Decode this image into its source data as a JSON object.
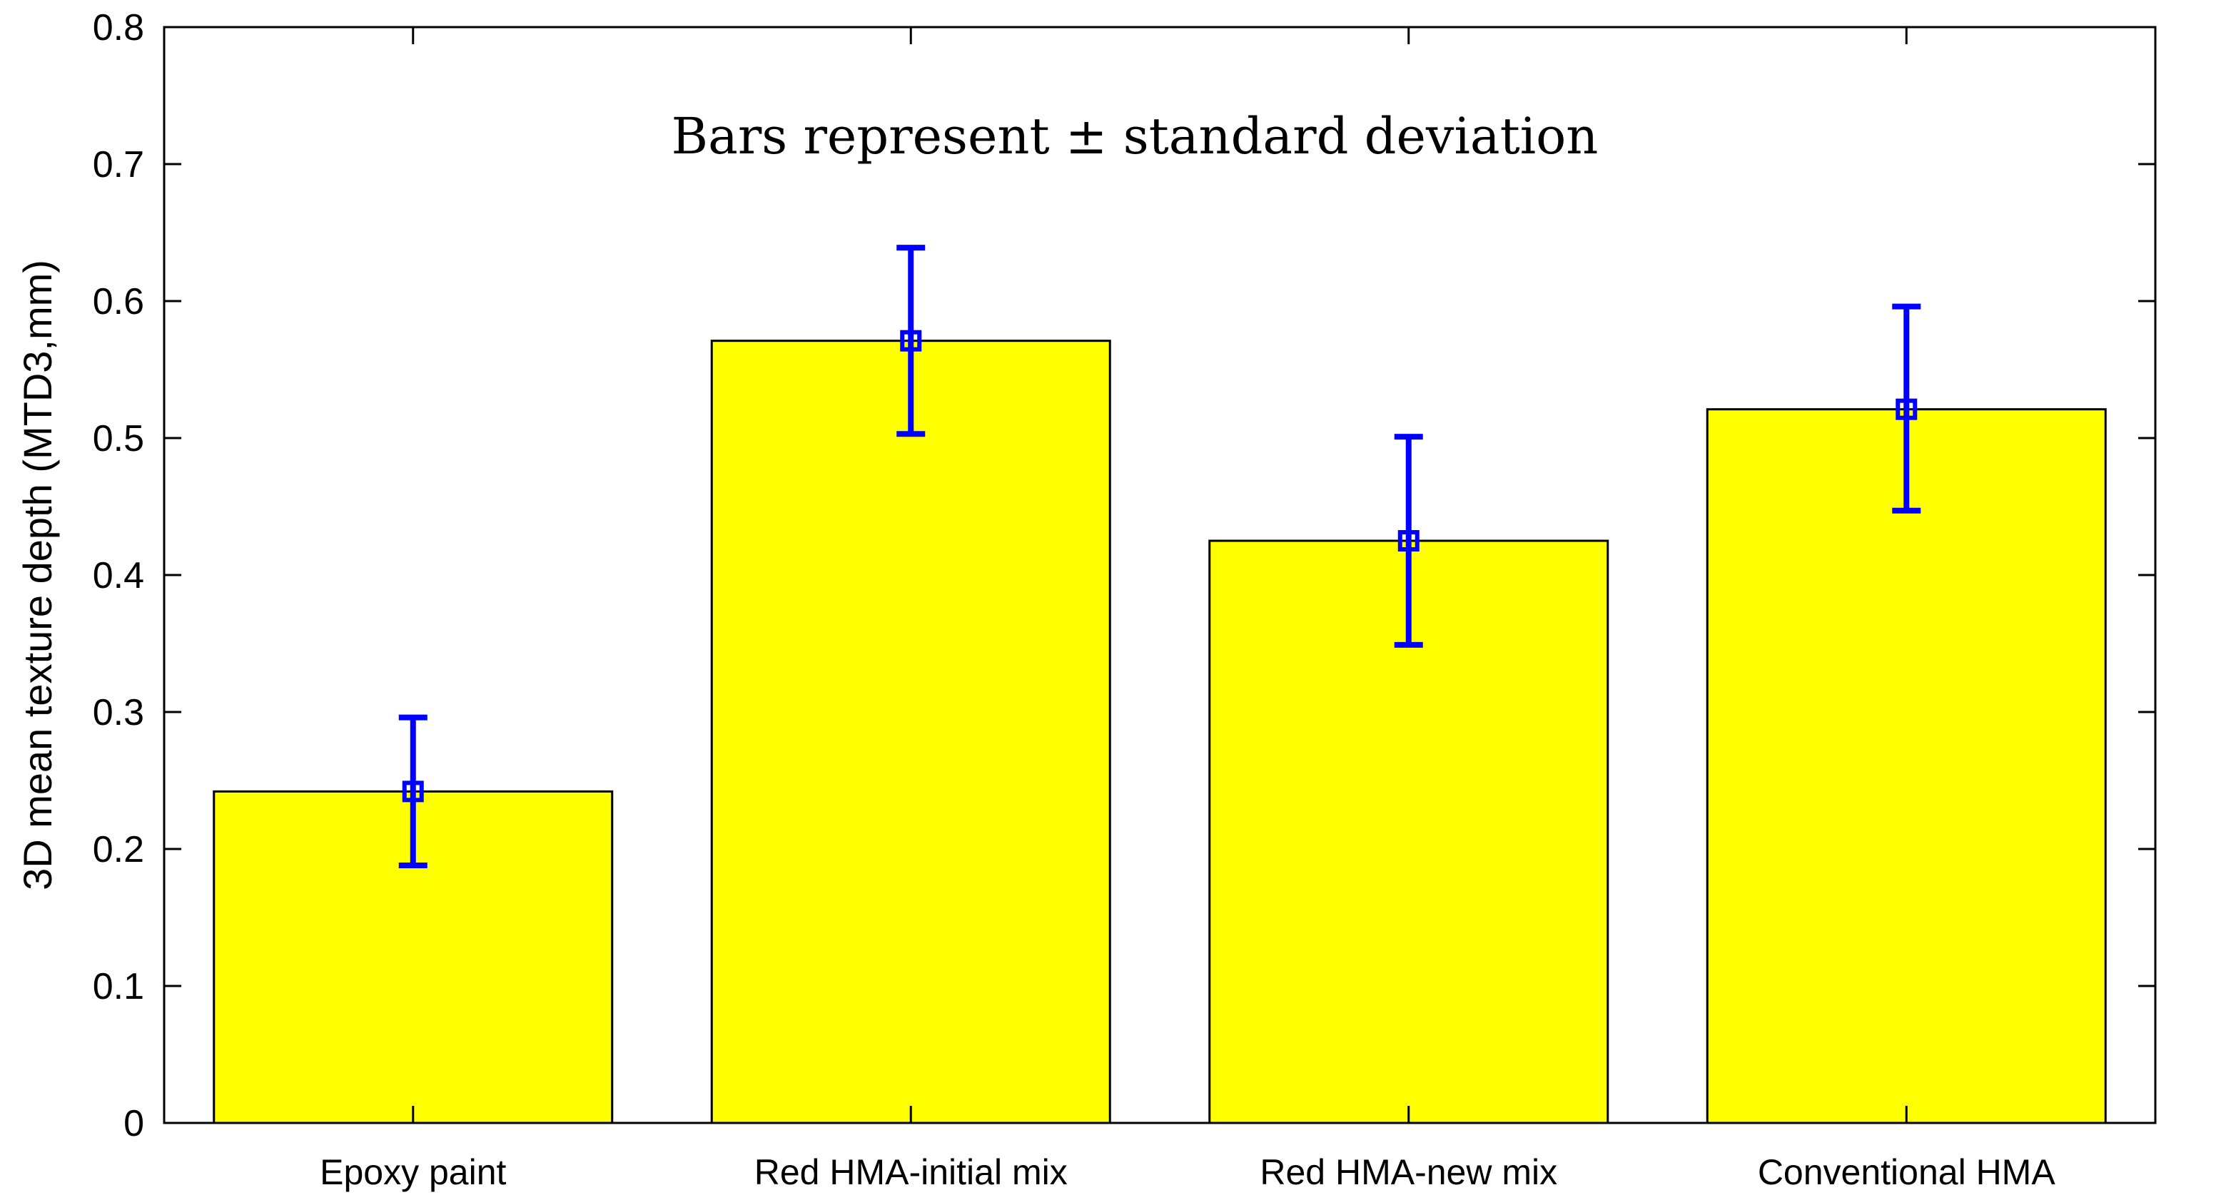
{
  "chart_data": {
    "type": "bar",
    "title": "",
    "xlabel": "",
    "ylabel": "3D mean texture depth (MTD3,mm)",
    "annotation": "Bars represent ± standard deviation",
    "categories": [
      "Epoxy paint",
      "Red HMA-initial mix",
      "Red HMA-new mix",
      "Conventional HMA"
    ],
    "values": [
      0.242,
      0.571,
      0.425,
      0.521
    ],
    "error_low": [
      0.188,
      0.503,
      0.349,
      0.447
    ],
    "error_high": [
      0.296,
      0.639,
      0.501,
      0.596
    ],
    "ylim": [
      0,
      0.8
    ],
    "yticks": [
      "0",
      "0.1",
      "0.2",
      "0.3",
      "0.4",
      "0.5",
      "0.6",
      "0.7",
      "0.8"
    ],
    "grid": false,
    "colors": {
      "bar_fill": "#ffff00",
      "bar_edge": "#000000",
      "error_bar": "#0000ff",
      "axis": "#000000"
    }
  }
}
